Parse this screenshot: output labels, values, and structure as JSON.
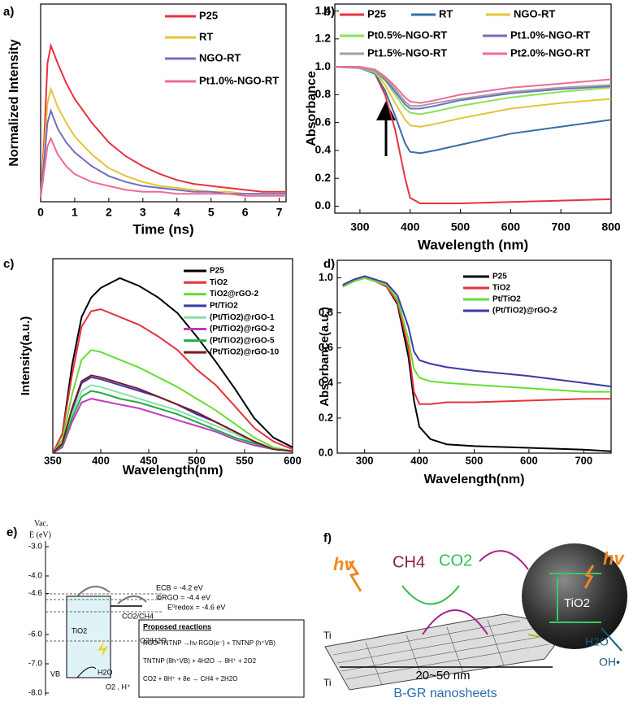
{
  "chart_data": [
    {
      "type": "line",
      "label": "a)",
      "xlabel": "Time (ns)",
      "ylabel": "Normalized Intensity",
      "x": [
        0,
        0.1,
        0.2,
        0.3,
        0.5,
        0.75,
        1,
        1.5,
        2,
        2.5,
        3,
        3.5,
        4,
        4.5,
        5,
        5.5,
        6,
        6.5,
        7.2
      ],
      "xlim": [
        0,
        7.2
      ],
      "xticks": [
        0,
        1,
        2,
        3,
        4,
        5,
        6,
        7
      ],
      "ylim": [
        0,
        1
      ],
      "legend": "upper right",
      "series": [
        {
          "name": "P25",
          "color": "#e8323c",
          "values": [
            0.02,
            0.3,
            0.7,
            0.79,
            0.7,
            0.6,
            0.52,
            0.4,
            0.3,
            0.23,
            0.18,
            0.14,
            0.11,
            0.09,
            0.08,
            0.07,
            0.06,
            0.05,
            0.05
          ]
        },
        {
          "name": "RT",
          "color": "#e6c43a",
          "values": [
            0.02,
            0.25,
            0.5,
            0.57,
            0.48,
            0.4,
            0.33,
            0.24,
            0.17,
            0.13,
            0.1,
            0.08,
            0.07,
            0.06,
            0.05,
            0.05,
            0.04,
            0.04,
            0.04
          ]
        },
        {
          "name": "NGO-RT",
          "color": "#6f6fc4",
          "values": [
            0.02,
            0.2,
            0.4,
            0.46,
            0.37,
            0.3,
            0.25,
            0.18,
            0.13,
            0.1,
            0.08,
            0.07,
            0.06,
            0.05,
            0.05,
            0.04,
            0.04,
            0.04,
            0.04
          ]
        },
        {
          "name": "Pt1.0%-NGO-RT",
          "color": "#f06a9a",
          "values": [
            0.02,
            0.15,
            0.28,
            0.32,
            0.24,
            0.18,
            0.14,
            0.1,
            0.08,
            0.06,
            0.05,
            0.05,
            0.04,
            0.04,
            0.04,
            0.04,
            0.03,
            0.03,
            0.03
          ]
        }
      ]
    },
    {
      "type": "line",
      "label": "b)",
      "xlabel": "Wavelength (nm)",
      "ylabel": "Absorbance",
      "x": [
        250,
        300,
        330,
        350,
        370,
        390,
        400,
        420,
        450,
        500,
        600,
        700,
        800
      ],
      "xlim": [
        250,
        800
      ],
      "xticks": [
        300,
        400,
        500,
        600,
        700,
        800
      ],
      "ylim": [
        -0.05,
        1.45
      ],
      "yticks": [
        {
          "value": 0,
          "label": "0.0"
        },
        {
          "value": 0.2,
          "label": "0.2"
        },
        {
          "value": 0.4,
          "label": "0.4"
        },
        {
          "value": 0.6,
          "label": "0.6"
        },
        {
          "value": 0.8,
          "label": "0.8"
        },
        {
          "value": 1,
          "label": "1.0"
        },
        {
          "value": 1.2,
          "label": "1.2"
        },
        {
          "value": 1.4,
          "label": "1.4"
        }
      ],
      "legend": "upper",
      "series": [
        {
          "name": "P25",
          "color": "#e8323c",
          "values": [
            1.0,
            1.0,
            0.95,
            0.8,
            0.55,
            0.2,
            0.06,
            0.02,
            0.02,
            0.02,
            0.03,
            0.04,
            0.05
          ]
        },
        {
          "name": "RT",
          "color": "#3a6ea5",
          "values": [
            1.0,
            0.99,
            0.95,
            0.83,
            0.65,
            0.45,
            0.39,
            0.38,
            0.4,
            0.44,
            0.52,
            0.57,
            0.62
          ]
        },
        {
          "name": "NGO-RT",
          "color": "#e6c43a",
          "values": [
            1.0,
            0.99,
            0.96,
            0.87,
            0.74,
            0.62,
            0.58,
            0.57,
            0.59,
            0.63,
            0.7,
            0.74,
            0.77
          ]
        },
        {
          "name": "Pt0.5%-NGO-RT",
          "color": "#8fe05a",
          "values": [
            1.0,
            0.99,
            0.96,
            0.9,
            0.8,
            0.7,
            0.67,
            0.66,
            0.68,
            0.72,
            0.78,
            0.82,
            0.85
          ]
        },
        {
          "name": "Pt1.0%-NGO-RT",
          "color": "#6f6fc4",
          "values": [
            1.0,
            0.99,
            0.97,
            0.91,
            0.82,
            0.73,
            0.7,
            0.7,
            0.72,
            0.76,
            0.81,
            0.84,
            0.86
          ]
        },
        {
          "name": "Pt1.5%-NGO-RT",
          "color": "#a0a0a0",
          "values": [
            1.0,
            0.99,
            0.97,
            0.92,
            0.84,
            0.75,
            0.72,
            0.72,
            0.74,
            0.77,
            0.82,
            0.85,
            0.87
          ]
        },
        {
          "name": "Pt2.0%-NGO-RT",
          "color": "#f06a9a",
          "values": [
            1.0,
            1.0,
            0.98,
            0.93,
            0.86,
            0.78,
            0.75,
            0.74,
            0.76,
            0.8,
            0.85,
            0.88,
            0.91
          ]
        }
      ]
    },
    {
      "type": "line",
      "label": "c)",
      "xlabel": "Wavelength(nm)",
      "ylabel": "Intensity(a.u.)",
      "x": [
        350,
        360,
        370,
        380,
        390,
        400,
        420,
        440,
        460,
        480,
        500,
        520,
        540,
        560,
        580,
        600
      ],
      "xlim": [
        350,
        600
      ],
      "xticks": [
        350,
        400,
        450,
        500,
        550,
        600
      ],
      "ylim": [
        0,
        1
      ],
      "legend": "upper right",
      "series": [
        {
          "name": "P25",
          "color": "#000000",
          "values": [
            0,
            0.1,
            0.45,
            0.7,
            0.8,
            0.85,
            0.9,
            0.86,
            0.8,
            0.72,
            0.6,
            0.47,
            0.33,
            0.18,
            0.08,
            0.03
          ]
        },
        {
          "name": "TiO2",
          "color": "#e8323c",
          "values": [
            0,
            0.1,
            0.4,
            0.65,
            0.73,
            0.74,
            0.7,
            0.66,
            0.6,
            0.53,
            0.43,
            0.35,
            0.24,
            0.13,
            0.06,
            0.02
          ]
        },
        {
          "name": "TiO2@rGO-2",
          "color": "#66dd33",
          "values": [
            0,
            0.07,
            0.3,
            0.48,
            0.53,
            0.52,
            0.48,
            0.44,
            0.39,
            0.34,
            0.28,
            0.22,
            0.15,
            0.08,
            0.03,
            0.01
          ]
        },
        {
          "name": "Pt/TiO2",
          "color": "#3a3aa8",
          "values": [
            0,
            0.05,
            0.22,
            0.36,
            0.39,
            0.38,
            0.35,
            0.32,
            0.29,
            0.25,
            0.2,
            0.16,
            0.11,
            0.06,
            0.02,
            0.01
          ]
        },
        {
          "name": "(Pt/TiO2)@rGO-1",
          "color": "#86e0a6",
          "values": [
            0,
            0.04,
            0.2,
            0.32,
            0.35,
            0.34,
            0.31,
            0.28,
            0.25,
            0.22,
            0.18,
            0.14,
            0.1,
            0.05,
            0.02,
            0.01
          ]
        },
        {
          "name": "(Pt/TiO2)@rGO-2",
          "color": "#c03ac0",
          "values": [
            0,
            0.03,
            0.16,
            0.26,
            0.28,
            0.27,
            0.25,
            0.23,
            0.2,
            0.17,
            0.14,
            0.11,
            0.07,
            0.04,
            0.02,
            0.01
          ]
        },
        {
          "name": "(Pt/TiO2)@rGO-5",
          "color": "#22aa44",
          "values": [
            0,
            0.04,
            0.18,
            0.29,
            0.32,
            0.31,
            0.28,
            0.26,
            0.23,
            0.2,
            0.16,
            0.12,
            0.08,
            0.05,
            0.02,
            0.01
          ]
        },
        {
          "name": "(Pt/TiO2)@rGO-10",
          "color": "#7a1a2a",
          "values": [
            0,
            0.05,
            0.23,
            0.37,
            0.4,
            0.39,
            0.36,
            0.33,
            0.29,
            0.25,
            0.21,
            0.16,
            0.11,
            0.06,
            0.02,
            0.01
          ]
        }
      ]
    },
    {
      "type": "line",
      "label": "d)",
      "xlabel": "Wavelength(nm)",
      "ylabel": "Absorbance(a.u.)",
      "x": [
        260,
        280,
        300,
        320,
        340,
        360,
        380,
        390,
        400,
        420,
        450,
        500,
        600,
        700,
        750
      ],
      "xlim": [
        250,
        750
      ],
      "xticks": [
        300,
        400,
        500,
        600,
        700
      ],
      "ylim": [
        0,
        1.1
      ],
      "yticks": [
        {
          "value": 0,
          "label": "0.0"
        },
        {
          "value": 0.2,
          "label": "0.2"
        },
        {
          "value": 0.4,
          "label": "0.4"
        },
        {
          "value": 0.6,
          "label": "0.6"
        },
        {
          "value": 0.8,
          "label": "0.8"
        },
        {
          "value": 1,
          "label": "1.0"
        }
      ],
      "legend": "upper right",
      "series": [
        {
          "name": "P25",
          "color": "#000000",
          "values": [
            0.95,
            0.98,
            1.0,
            0.98,
            0.95,
            0.85,
            0.55,
            0.3,
            0.15,
            0.08,
            0.05,
            0.04,
            0.03,
            0.02,
            0.01
          ]
        },
        {
          "name": "TiO2",
          "color": "#e8323c",
          "values": [
            0.95,
            0.98,
            1.0,
            0.98,
            0.95,
            0.86,
            0.6,
            0.35,
            0.28,
            0.28,
            0.29,
            0.29,
            0.3,
            0.31,
            0.31
          ]
        },
        {
          "name": "Pt/TiO2",
          "color": "#66dd33",
          "values": [
            0.95,
            0.98,
            1.0,
            0.98,
            0.96,
            0.88,
            0.65,
            0.48,
            0.43,
            0.41,
            0.4,
            0.39,
            0.37,
            0.35,
            0.35
          ]
        },
        {
          "name": "(Pt/TiO2)@rGO-2",
          "color": "#3a3aa8",
          "values": [
            0.96,
            0.99,
            1.01,
            0.99,
            0.97,
            0.9,
            0.72,
            0.58,
            0.53,
            0.51,
            0.49,
            0.47,
            0.44,
            0.4,
            0.38
          ]
        }
      ]
    }
  ],
  "panel_e": {
    "label": "e)",
    "axis_title": [
      "Vac.",
      "E (eV)"
    ],
    "ylim": [
      -8,
      -3
    ],
    "yticks": [
      {
        "value": -3,
        "label": "-3.0"
      },
      {
        "value": -4,
        "label": "-4.0"
      },
      {
        "value": -4.6,
        "label": "-4.6"
      },
      {
        "value": -6,
        "label": "-6.0"
      },
      {
        "value": -7,
        "label": "-7.0"
      },
      {
        "value": -8,
        "label": "-8.0"
      }
    ],
    "ecb": "ECB = -4.2 eV",
    "phi": "ΦRGO = -4.4 eV",
    "redox": "E⁰redox = -4.6 eV",
    "co2": "CO2/CH4",
    "o2": "O2/H2O",
    "tio2": "TiO2",
    "vb": "VB",
    "h2o": "H2O",
    "products": "O2 , H⁺",
    "reactions_title": "Proposed reactions",
    "reactions": [
      "RGO-TNTNP →hν RGO(e⁻) + TNTNP (h⁺VB)",
      "TNTNP (8h⁺VB) + 4H2O → 8H⁺ + 2O2",
      "CO2 + 8H⁺ + 8e → CH4 + 2H2O"
    ]
  },
  "panel_f": {
    "label": "f)",
    "ch4": "CH4",
    "co2": "CO2",
    "tio2": "TiO2",
    "hv": "hv",
    "h2o": "H2O",
    "oh": "OH•",
    "ti": "Ti",
    "size": "20~50 nm",
    "sheet": "B-GR nanosheets"
  }
}
